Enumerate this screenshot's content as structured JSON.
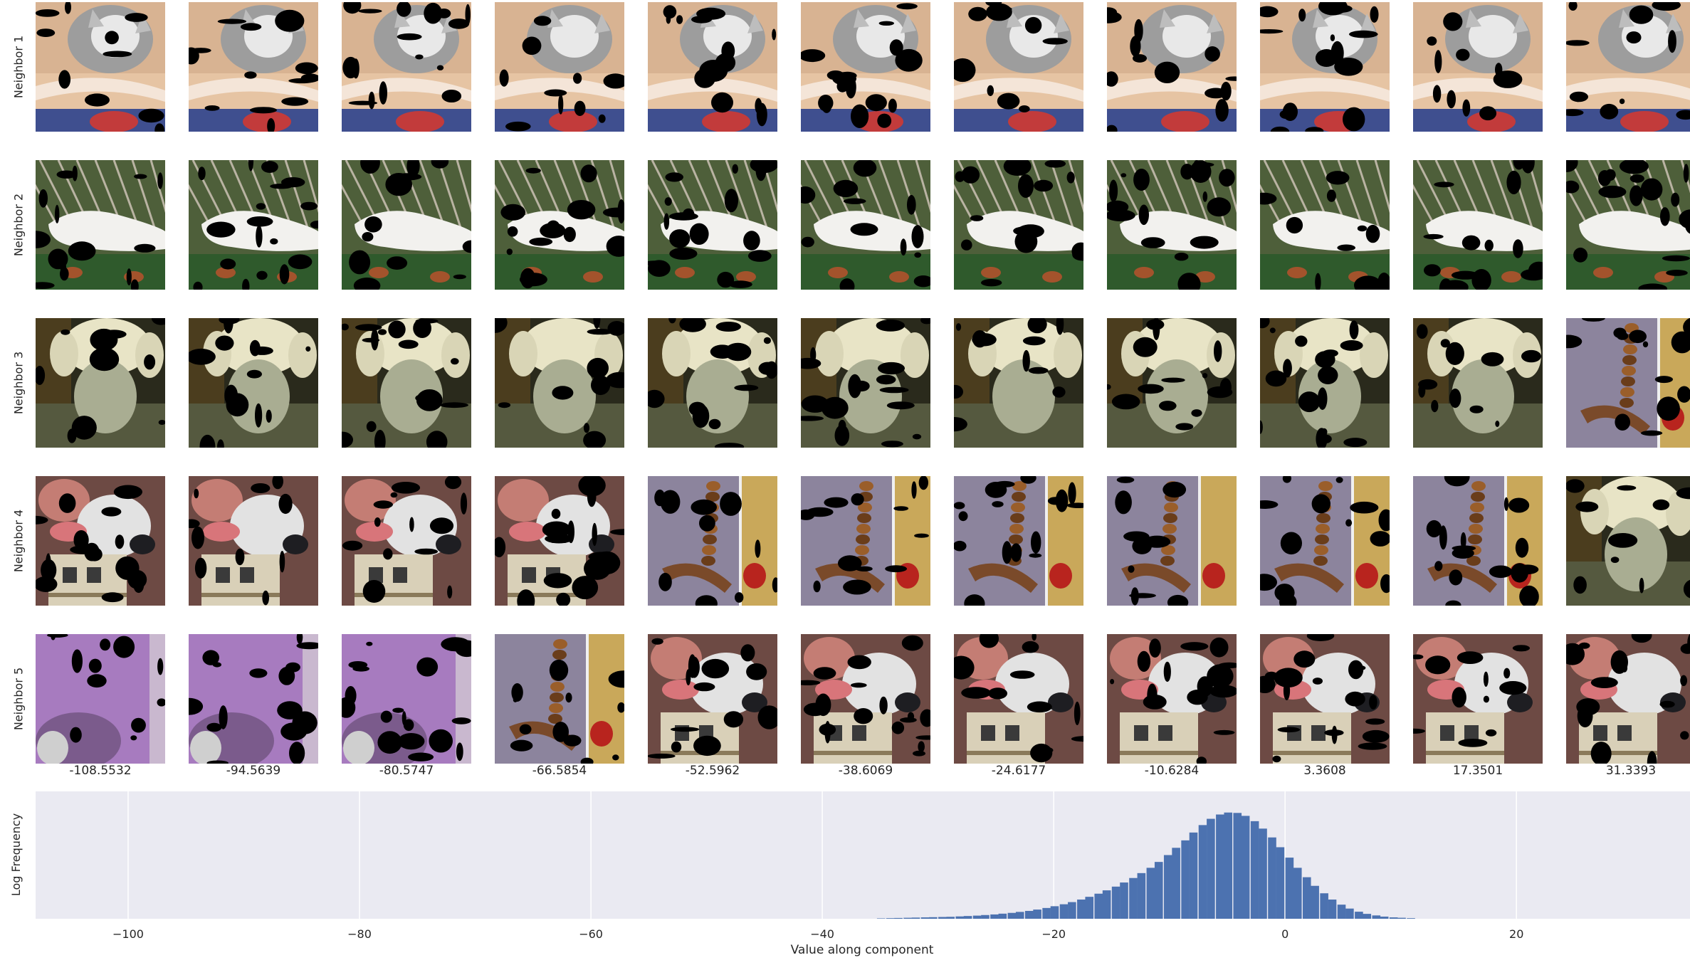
{
  "rows": [
    {
      "label": "Neighbor 1",
      "tiles": [
        "cat",
        "cat",
        "cat",
        "cat",
        "cat",
        "cat",
        "cat",
        "cat",
        "cat",
        "cat",
        "cat"
      ]
    },
    {
      "label": "Neighbor 2",
      "tiles": [
        "aerial",
        "aerial",
        "aerial",
        "aerial",
        "aerial",
        "aerial",
        "aerial",
        "aerial",
        "aerial",
        "aerial",
        "aerial"
      ]
    },
    {
      "label": "Neighbor 3",
      "tiles": [
        "dog",
        "dog",
        "dog",
        "dog",
        "dog",
        "dog",
        "dog",
        "dog",
        "dog",
        "dog",
        "centipede"
      ]
    },
    {
      "label": "Neighbor 4",
      "tiles": [
        "face-dog",
        "face-dog",
        "face-dog",
        "face-dog",
        "centipede",
        "centipede",
        "centipede",
        "centipede",
        "centipede",
        "centipede",
        "dog"
      ]
    },
    {
      "label": "Neighbor 5",
      "tiles": [
        "purple",
        "purple",
        "purple",
        "centipede",
        "face-dog",
        "face-dog",
        "face-dog",
        "face-dog",
        "face-dog",
        "face-dog",
        "face-dog"
      ]
    }
  ],
  "column_values": [
    "-108.5532",
    "-94.5639",
    "-80.5747",
    "-66.5854",
    "-52.5962",
    "-38.6069",
    "-24.6177",
    "-10.6284",
    "3.3608",
    "17.3501",
    "31.3393"
  ],
  "colors": {
    "bar": "#4c72b0",
    "axes_bg": "#eaeaf2",
    "grid": "#ffffff"
  },
  "chart_data": {
    "type": "bar",
    "title": "",
    "xlabel": "Value along component",
    "ylabel": "Log Frequency",
    "xlim": [
      -108,
      35
    ],
    "ylim": [
      0,
      6.5
    ],
    "x_ticks": [
      -100,
      -80,
      -60,
      -40,
      -20,
      0,
      20
    ],
    "x_tick_labels": [
      "−100",
      "−80",
      "−60",
      "−40",
      "−20",
      "0",
      "20"
    ],
    "grid": true,
    "bin_width": 0.75,
    "bins": [
      [
        -34.9,
        0.02
      ],
      [
        -34.1,
        0.03
      ],
      [
        -33.4,
        0.04
      ],
      [
        -32.6,
        0.05
      ],
      [
        -31.9,
        0.06
      ],
      [
        -31.1,
        0.07
      ],
      [
        -30.4,
        0.08
      ],
      [
        -29.6,
        0.09
      ],
      [
        -28.9,
        0.1
      ],
      [
        -28.1,
        0.12
      ],
      [
        -27.4,
        0.14
      ],
      [
        -26.6,
        0.16
      ],
      [
        -25.9,
        0.19
      ],
      [
        -25.1,
        0.22
      ],
      [
        -24.4,
        0.26
      ],
      [
        -23.6,
        0.3
      ],
      [
        -22.9,
        0.35
      ],
      [
        -22.1,
        0.4
      ],
      [
        -21.4,
        0.47
      ],
      [
        -20.6,
        0.55
      ],
      [
        -19.9,
        0.64
      ],
      [
        -19.1,
        0.74
      ],
      [
        -18.4,
        0.85
      ],
      [
        -17.6,
        0.98
      ],
      [
        -16.9,
        1.12
      ],
      [
        -16.1,
        1.28
      ],
      [
        -15.4,
        1.45
      ],
      [
        -14.6,
        1.64
      ],
      [
        -13.9,
        1.85
      ],
      [
        -13.1,
        2.08
      ],
      [
        -12.4,
        2.33
      ],
      [
        -11.6,
        2.6
      ],
      [
        -10.9,
        2.9
      ],
      [
        -10.1,
        3.25
      ],
      [
        -9.4,
        3.62
      ],
      [
        -8.6,
        4.0
      ],
      [
        -7.9,
        4.4
      ],
      [
        -7.1,
        4.78
      ],
      [
        -6.4,
        5.1
      ],
      [
        -5.6,
        5.32
      ],
      [
        -4.9,
        5.42
      ],
      [
        -4.1,
        5.4
      ],
      [
        -3.4,
        5.25
      ],
      [
        -2.6,
        4.98
      ],
      [
        -1.9,
        4.6
      ],
      [
        -1.1,
        4.15
      ],
      [
        -0.4,
        3.65
      ],
      [
        0.4,
        3.12
      ],
      [
        1.1,
        2.6
      ],
      [
        1.9,
        2.12
      ],
      [
        2.6,
        1.68
      ],
      [
        3.4,
        1.3
      ],
      [
        4.1,
        0.98
      ],
      [
        4.9,
        0.72
      ],
      [
        5.6,
        0.52
      ],
      [
        6.4,
        0.36
      ],
      [
        7.1,
        0.25
      ],
      [
        7.9,
        0.17
      ],
      [
        8.6,
        0.11
      ],
      [
        9.4,
        0.07
      ],
      [
        10.1,
        0.05
      ],
      [
        10.9,
        0.03
      ]
    ]
  }
}
